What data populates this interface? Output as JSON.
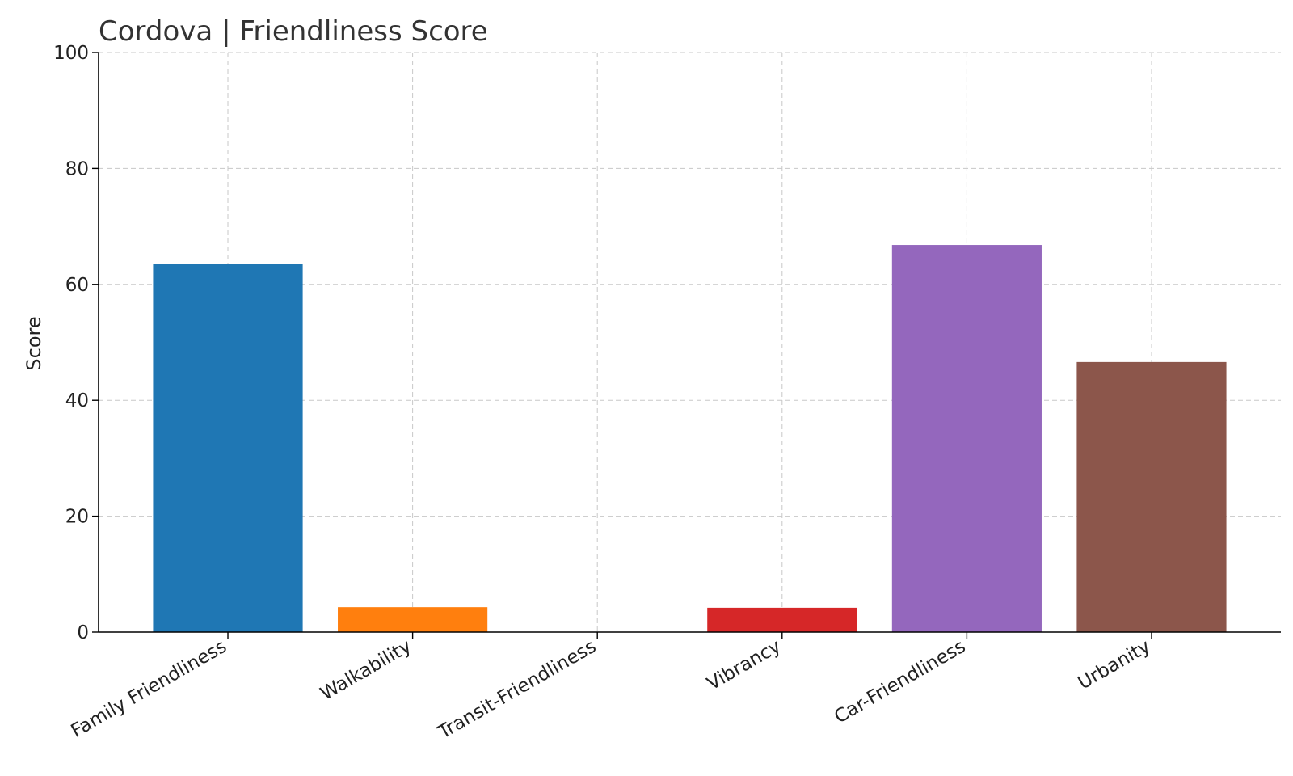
{
  "chart_data": {
    "type": "bar",
    "title": "Cordova | Friendliness Score",
    "xlabel": "",
    "ylabel": "Score",
    "ylim": [
      0,
      100
    ],
    "yticks": [
      0,
      20,
      40,
      60,
      80,
      100
    ],
    "grid": true,
    "legend": "none",
    "categories": [
      "Family Friendliness",
      "Walkability",
      "Transit-Friendliness",
      "Vibrancy",
      "Car-Friendliness",
      "Urbanity"
    ],
    "values": [
      63.5,
      4.3,
      0,
      4.2,
      66.8,
      46.6
    ],
    "colors": [
      "#1f77b4",
      "#ff7f0e",
      "#2ca02c",
      "#d62728",
      "#9467bd",
      "#8c564b"
    ]
  }
}
